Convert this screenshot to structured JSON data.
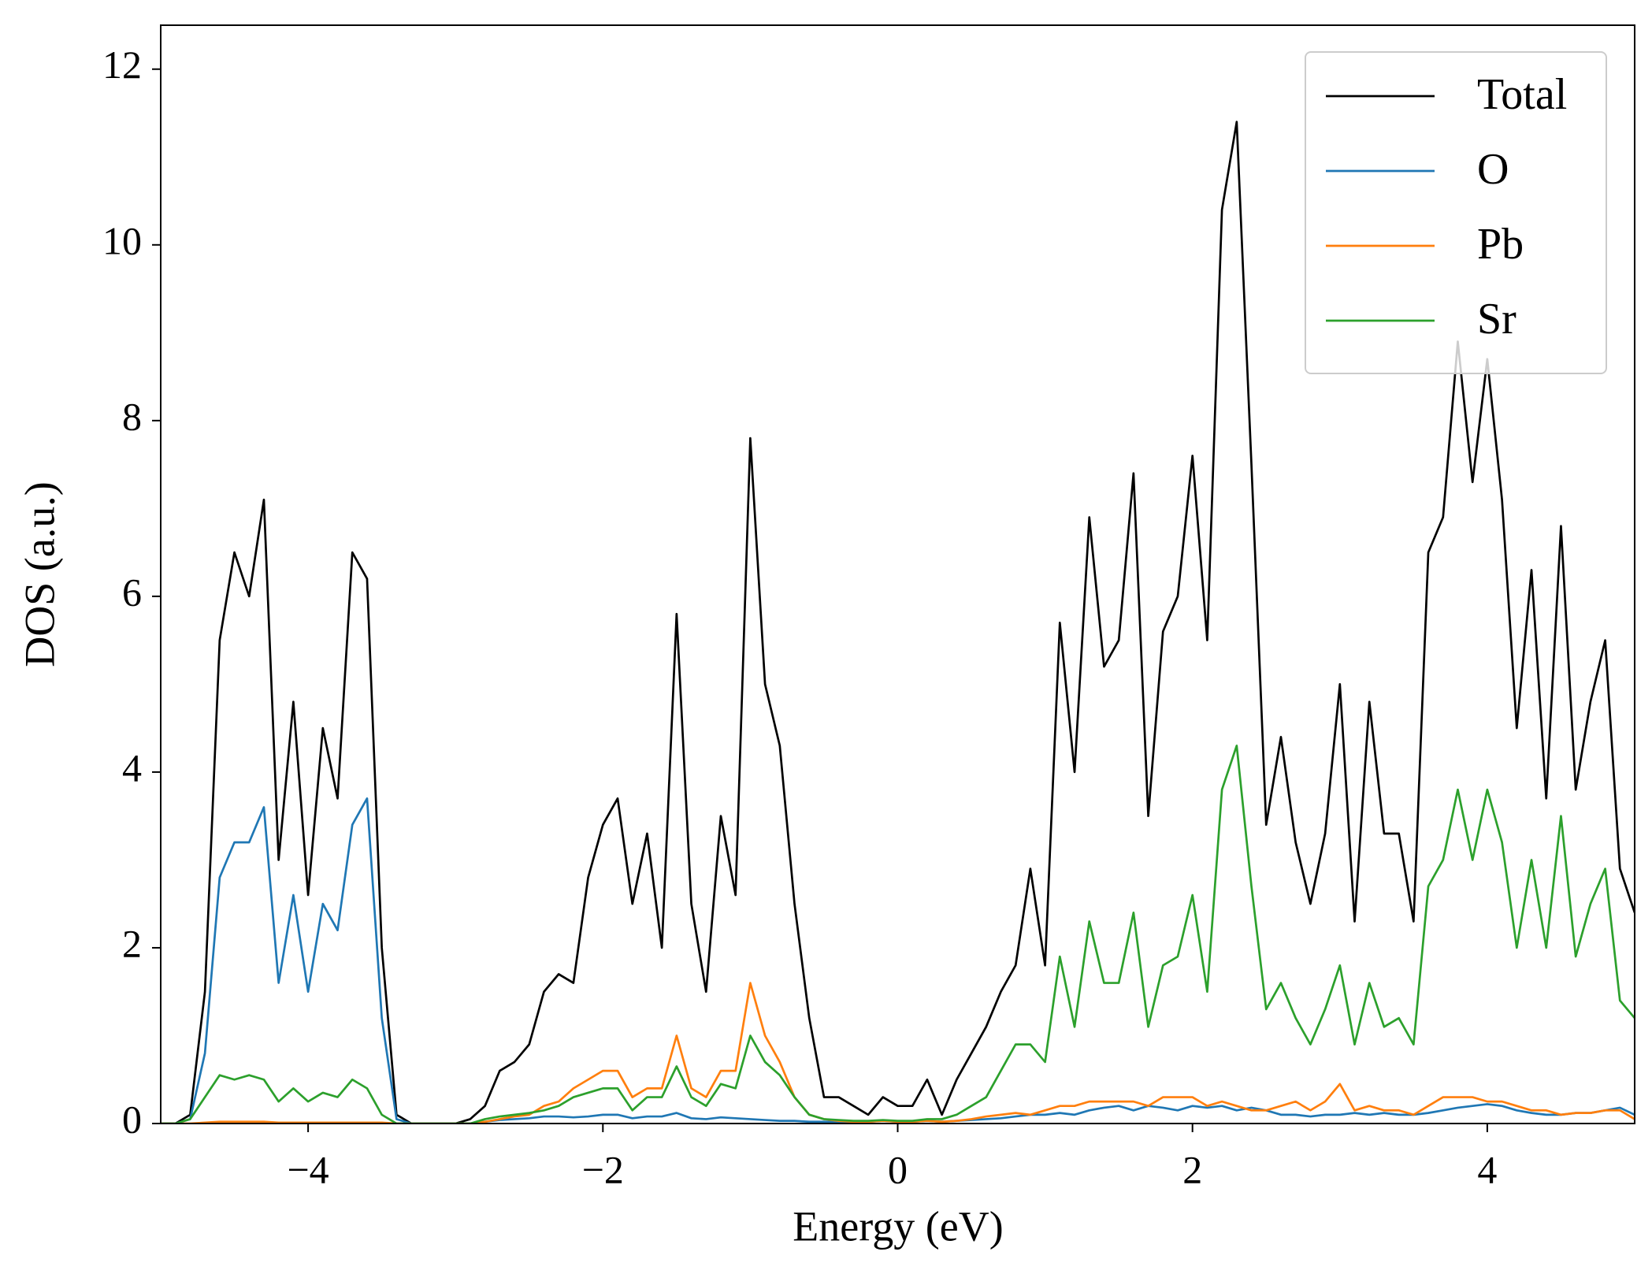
{
  "chart_data": {
    "type": "line",
    "xlabel": "Energy (eV)",
    "ylabel": "DOS (a.u.)",
    "x": [
      -5,
      -4.9,
      -4.8,
      -4.7,
      -4.6,
      -4.5,
      -4.4,
      -4.3,
      -4.2,
      -4.1,
      -4,
      -3.9,
      -3.8,
      -3.7,
      -3.6,
      -3.5,
      -3.4,
      -3.3,
      -3.2,
      -3.1,
      -3,
      -2.9,
      -2.8,
      -2.7,
      -2.6,
      -2.5,
      -2.4,
      -2.3,
      -2.2,
      -2.1,
      -2,
      -1.9,
      -1.8,
      -1.7,
      -1.6,
      -1.5,
      -1.4,
      -1.3,
      -1.2,
      -1.1,
      -1,
      -0.9,
      -0.8,
      -0.7,
      -0.6,
      -0.5,
      -0.4,
      -0.3,
      -0.2,
      -0.1,
      0,
      0.1,
      0.2,
      0.3,
      0.4,
      0.5,
      0.6,
      0.7,
      0.8,
      0.9,
      1,
      1.1,
      1.2,
      1.3,
      1.4,
      1.5,
      1.6,
      1.7,
      1.8,
      1.9,
      2,
      2.1,
      2.2,
      2.3,
      2.4,
      2.5,
      2.6,
      2.7,
      2.8,
      2.9,
      3,
      3.1,
      3.2,
      3.3,
      3.4,
      3.5,
      3.6,
      3.7,
      3.8,
      3.9,
      4,
      4.1,
      4.2,
      4.3,
      4.4,
      4.5,
      4.6,
      4.7,
      4.8,
      4.9,
      5
    ],
    "series": [
      {
        "name": "Total",
        "color": "#000000",
        "values": [
          0,
          0,
          0.1,
          1.5,
          5.5,
          6.5,
          6.0,
          7.1,
          3.0,
          4.8,
          2.6,
          4.5,
          3.7,
          6.5,
          6.2,
          2.0,
          0.1,
          0,
          0,
          0,
          0,
          0.05,
          0.2,
          0.6,
          0.7,
          0.9,
          1.5,
          1.7,
          1.6,
          2.8,
          3.4,
          3.7,
          2.5,
          3.3,
          2.0,
          5.8,
          2.5,
          1.5,
          3.5,
          2.6,
          7.8,
          5.0,
          4.3,
          2.5,
          1.2,
          0.3,
          0.3,
          0.2,
          0.1,
          0.3,
          0.2,
          0.2,
          0.5,
          0.1,
          0.5,
          0.8,
          1.1,
          1.5,
          1.8,
          2.9,
          1.8,
          5.7,
          4.0,
          6.9,
          5.2,
          5.5,
          7.4,
          3.5,
          5.6,
          6.0,
          7.6,
          5.5,
          10.4,
          11.4,
          7.5,
          3.4,
          4.4,
          3.2,
          2.5,
          3.3,
          5.0,
          2.3,
          4.8,
          3.3,
          3.3,
          2.3,
          6.5,
          6.9,
          8.9,
          7.3,
          8.7,
          7.1,
          4.5,
          6.3,
          3.7,
          6.8,
          3.8,
          4.8,
          5.5,
          2.9,
          2.4
        ]
      },
      {
        "name": "O",
        "color": "#1f77b4",
        "values": [
          0,
          0,
          0.05,
          0.8,
          2.8,
          3.2,
          3.2,
          3.6,
          1.6,
          2.6,
          1.5,
          2.5,
          2.2,
          3.4,
          3.7,
          1.2,
          0.05,
          0,
          0,
          0,
          0,
          0,
          0.02,
          0.04,
          0.05,
          0.06,
          0.08,
          0.08,
          0.07,
          0.08,
          0.1,
          0.1,
          0.06,
          0.08,
          0.08,
          0.12,
          0.06,
          0.05,
          0.07,
          0.06,
          0.05,
          0.04,
          0.03,
          0.03,
          0.02,
          0.02,
          0.02,
          0.02,
          0.02,
          0.03,
          0.02,
          0.02,
          0.03,
          0.02,
          0.03,
          0.04,
          0.05,
          0.06,
          0.08,
          0.1,
          0.1,
          0.12,
          0.1,
          0.15,
          0.18,
          0.2,
          0.15,
          0.2,
          0.18,
          0.15,
          0.2,
          0.18,
          0.2,
          0.15,
          0.18,
          0.15,
          0.1,
          0.1,
          0.08,
          0.1,
          0.1,
          0.12,
          0.1,
          0.12,
          0.1,
          0.1,
          0.12,
          0.15,
          0.18,
          0.2,
          0.22,
          0.2,
          0.15,
          0.12,
          0.1,
          0.1,
          0.12,
          0.12,
          0.15,
          0.18,
          0.1
        ]
      },
      {
        "name": "Pb",
        "color": "#ff7f0e",
        "values": [
          0,
          0,
          0,
          0.01,
          0.02,
          0.02,
          0.02,
          0.02,
          0.01,
          0.01,
          0.01,
          0.01,
          0.01,
          0.01,
          0.01,
          0.01,
          0,
          0,
          0,
          0,
          0,
          0,
          0.02,
          0.05,
          0.08,
          0.1,
          0.2,
          0.25,
          0.4,
          0.5,
          0.6,
          0.6,
          0.3,
          0.4,
          0.4,
          1.0,
          0.4,
          0.3,
          0.6,
          0.6,
          1.6,
          1.0,
          0.7,
          0.3,
          0.1,
          0.05,
          0.03,
          0.02,
          0.02,
          0.03,
          0.02,
          0.02,
          0.03,
          0.02,
          0.03,
          0.05,
          0.08,
          0.1,
          0.12,
          0.1,
          0.15,
          0.2,
          0.2,
          0.25,
          0.25,
          0.25,
          0.25,
          0.2,
          0.3,
          0.3,
          0.3,
          0.2,
          0.25,
          0.2,
          0.15,
          0.15,
          0.2,
          0.25,
          0.15,
          0.25,
          0.45,
          0.15,
          0.2,
          0.15,
          0.15,
          0.1,
          0.2,
          0.3,
          0.3,
          0.3,
          0.25,
          0.25,
          0.2,
          0.15,
          0.15,
          0.1,
          0.12,
          0.12,
          0.15,
          0.15,
          0.05
        ]
      },
      {
        "name": "Sr",
        "color": "#2ca02c",
        "values": [
          0,
          0,
          0.05,
          0.3,
          0.55,
          0.5,
          0.55,
          0.5,
          0.25,
          0.4,
          0.25,
          0.35,
          0.3,
          0.5,
          0.4,
          0.1,
          0,
          0,
          0,
          0,
          0,
          0,
          0.05,
          0.08,
          0.1,
          0.12,
          0.15,
          0.2,
          0.3,
          0.35,
          0.4,
          0.4,
          0.15,
          0.3,
          0.3,
          0.65,
          0.3,
          0.2,
          0.45,
          0.4,
          1.0,
          0.7,
          0.55,
          0.3,
          0.1,
          0.05,
          0.04,
          0.03,
          0.03,
          0.04,
          0.03,
          0.03,
          0.05,
          0.05,
          0.1,
          0.2,
          0.3,
          0.6,
          0.9,
          0.9,
          0.7,
          1.9,
          1.1,
          2.3,
          1.6,
          1.6,
          2.4,
          1.1,
          1.8,
          1.9,
          2.6,
          1.5,
          3.8,
          4.3,
          2.7,
          1.3,
          1.6,
          1.2,
          0.9,
          1.3,
          1.8,
          0.9,
          1.6,
          1.1,
          1.2,
          0.9,
          2.7,
          3.0,
          3.8,
          3.0,
          3.8,
          3.2,
          2.0,
          3.0,
          2.0,
          3.5,
          1.9,
          2.5,
          2.9,
          1.4,
          1.2
        ]
      }
    ],
    "xlim": [
      -5,
      5
    ],
    "xticks": [
      {
        "value": -4,
        "label": "−4"
      },
      {
        "value": -2,
        "label": "−2"
      },
      0,
      2,
      4
    ],
    "ylim": [
      0,
      12.5
    ],
    "yticks": [
      0,
      2,
      4,
      6,
      8,
      10,
      12
    ],
    "grid": false,
    "legend": "upper right"
  }
}
